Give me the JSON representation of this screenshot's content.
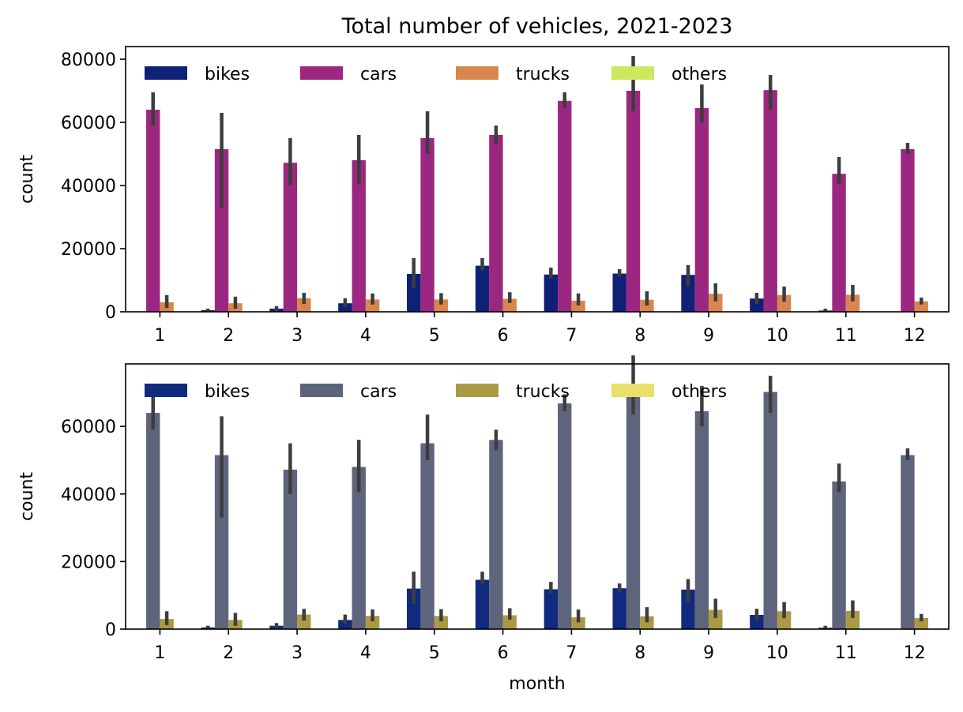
{
  "figure": {
    "title": "Total number of vehicles, 2021-2023"
  },
  "chart_data": [
    {
      "type": "bar",
      "title": "Total number of vehicles, 2021-2023",
      "xlabel": "",
      "ylabel": "count",
      "categories": [
        "1",
        "2",
        "3",
        "4",
        "5",
        "6",
        "7",
        "8",
        "9",
        "10",
        "11",
        "12"
      ],
      "ylim": [
        0,
        84000
      ],
      "yticks": [
        0,
        20000,
        40000,
        60000,
        80000
      ],
      "legend_position": "top-left",
      "grid": false,
      "series": [
        {
          "name": "bikes",
          "color": "#0f2177",
          "values": [
            0,
            500,
            1000,
            2700,
            12000,
            14600,
            11800,
            12100,
            11700,
            4200,
            400,
            0
          ],
          "ci_low": [
            0,
            0,
            200,
            1500,
            7500,
            13200,
            10500,
            11000,
            8000,
            2500,
            0,
            0
          ],
          "ci_high": [
            0,
            1000,
            1800,
            4300,
            17000,
            17000,
            14000,
            13500,
            14800,
            6000,
            1000,
            0
          ]
        },
        {
          "name": "cars",
          "color": "#9c2781",
          "values": [
            64000,
            51500,
            47200,
            48000,
            55000,
            56000,
            66800,
            70000,
            64500,
            70200,
            43700,
            51500
          ],
          "ci_low": [
            59000,
            33000,
            40000,
            40500,
            50000,
            53000,
            64500,
            63500,
            60000,
            64000,
            40500,
            50000
          ],
          "ci_high": [
            69500,
            63000,
            55000,
            56000,
            63500,
            59000,
            69500,
            81000,
            72000,
            75000,
            49000,
            53500
          ]
        },
        {
          "name": "trucks",
          "color": "#d8864e",
          "values": [
            3000,
            2700,
            4300,
            3900,
            3900,
            4100,
            3500,
            3800,
            5700,
            5300,
            5400,
            3300
          ],
          "ci_low": [
            1200,
            1000,
            2500,
            2300,
            2300,
            2800,
            2000,
            2000,
            3300,
            3200,
            3300,
            2300
          ],
          "ci_high": [
            5300,
            4800,
            6000,
            5800,
            5900,
            6200,
            5800,
            6500,
            9000,
            8000,
            8500,
            4500
          ]
        },
        {
          "name": "others",
          "color": "#cbe85e",
          "values": [
            0,
            0,
            0,
            0,
            0,
            0,
            0,
            0,
            0,
            0,
            0,
            0
          ],
          "ci_low": [
            0,
            0,
            0,
            0,
            0,
            0,
            0,
            0,
            0,
            0,
            0,
            0
          ],
          "ci_high": [
            0,
            0,
            0,
            0,
            0,
            0,
            0,
            0,
            0,
            0,
            0,
            0
          ]
        }
      ]
    },
    {
      "type": "bar",
      "title": "",
      "xlabel": "month",
      "ylabel": "count",
      "categories": [
        "1",
        "2",
        "3",
        "4",
        "5",
        "6",
        "7",
        "8",
        "9",
        "10",
        "11",
        "12"
      ],
      "ylim": [
        0,
        78500
      ],
      "yticks": [
        0,
        20000,
        40000,
        60000
      ],
      "legend_position": "top-left",
      "grid": false,
      "series": [
        {
          "name": "bikes",
          "color": "#0f2a7f",
          "values": [
            0,
            500,
            1000,
            2700,
            12000,
            14600,
            11800,
            12100,
            11700,
            4200,
            400,
            0
          ],
          "ci_low": [
            0,
            0,
            200,
            1500,
            7500,
            13200,
            10500,
            11000,
            8000,
            2500,
            0,
            0
          ],
          "ci_high": [
            0,
            1000,
            1800,
            4300,
            17000,
            17000,
            14000,
            13500,
            14800,
            6000,
            1000,
            0
          ]
        },
        {
          "name": "cars",
          "color": "#5e647c",
          "values": [
            64000,
            51500,
            47200,
            48000,
            55000,
            56000,
            66800,
            70000,
            64500,
            70200,
            43700,
            51500
          ],
          "ci_low": [
            59000,
            33000,
            40000,
            40500,
            50000,
            53000,
            64500,
            63500,
            60000,
            64000,
            40500,
            50000
          ],
          "ci_high": [
            69500,
            63000,
            55000,
            56000,
            63500,
            59000,
            69500,
            81000,
            72000,
            75000,
            49000,
            53500
          ]
        },
        {
          "name": "trucks",
          "color": "#aa9a46",
          "values": [
            3000,
            2700,
            4300,
            3900,
            3900,
            4100,
            3500,
            3800,
            5700,
            5300,
            5400,
            3300
          ],
          "ci_low": [
            1200,
            1000,
            2500,
            2300,
            2300,
            2800,
            2000,
            2000,
            3300,
            3200,
            3300,
            2300
          ],
          "ci_high": [
            5300,
            4800,
            6000,
            5800,
            5900,
            6200,
            5800,
            6500,
            9000,
            8000,
            8500,
            4500
          ]
        },
        {
          "name": "others",
          "color": "#e9df6b",
          "values": [
            0,
            0,
            0,
            0,
            0,
            0,
            0,
            0,
            0,
            0,
            0,
            0
          ],
          "ci_low": [
            0,
            0,
            0,
            0,
            0,
            0,
            0,
            0,
            0,
            0,
            0,
            0
          ],
          "ci_high": [
            0,
            0,
            0,
            0,
            0,
            0,
            0,
            0,
            0,
            0,
            0,
            0
          ]
        }
      ]
    }
  ]
}
